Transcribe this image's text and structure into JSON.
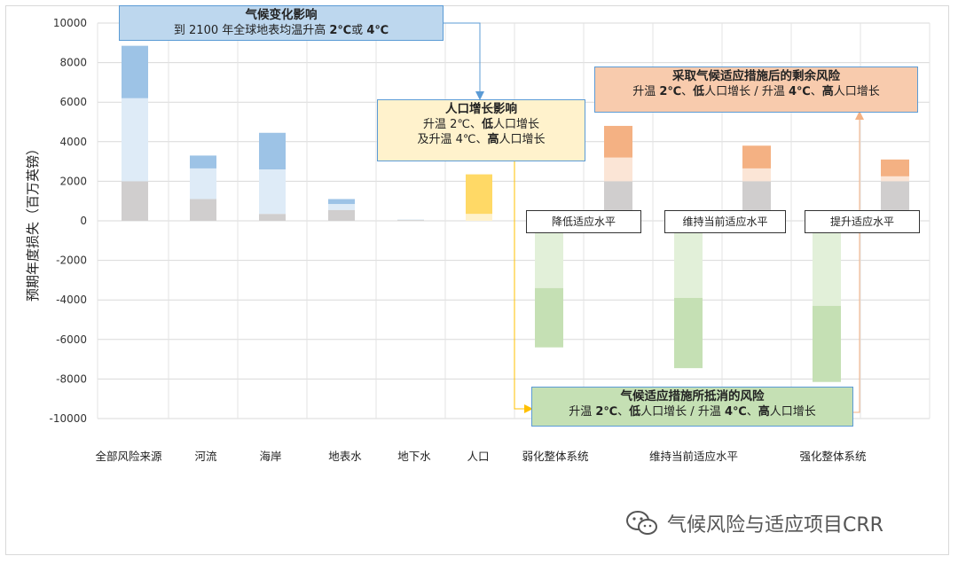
{
  "chart_data": {
    "type": "bar",
    "ylabel": "预期年度损失（百万英镑）",
    "ylim": [
      -10000,
      10000
    ],
    "yticks": [
      10000,
      8000,
      6000,
      4000,
      2000,
      0,
      -2000,
      -4000,
      -6000,
      -8000,
      -10000
    ],
    "grid": true,
    "categories": [
      "全部风险来源",
      "河流",
      "海岸",
      "地表水",
      "地下水",
      "人口",
      "弱化整体系统",
      "维持当前适应水平",
      "强化整体系统"
    ],
    "stacks": [
      {
        "category": "全部风险来源",
        "segments": [
          {
            "from": 0,
            "to": 2000,
            "color": "#d0cece"
          },
          {
            "from": 2000,
            "to": 6200,
            "color": "#deebf7"
          },
          {
            "from": 6200,
            "to": 8850,
            "color": "#9dc3e6"
          }
        ]
      },
      {
        "category": "河流",
        "segments": [
          {
            "from": 0,
            "to": 1100,
            "color": "#d0cece"
          },
          {
            "from": 1100,
            "to": 2650,
            "color": "#deebf7"
          },
          {
            "from": 2650,
            "to": 3300,
            "color": "#9dc3e6"
          }
        ]
      },
      {
        "category": "海岸",
        "segments": [
          {
            "from": 0,
            "to": 350,
            "color": "#d0cece"
          },
          {
            "from": 350,
            "to": 2600,
            "color": "#deebf7"
          },
          {
            "from": 2600,
            "to": 4450,
            "color": "#9dc3e6"
          }
        ]
      },
      {
        "category": "地表水",
        "segments": [
          {
            "from": 0,
            "to": 550,
            "color": "#d0cece"
          },
          {
            "from": 550,
            "to": 850,
            "color": "#deebf7"
          },
          {
            "from": 850,
            "to": 1100,
            "color": "#9dc3e6"
          }
        ]
      },
      {
        "category": "地下水",
        "segments": [
          {
            "from": 0,
            "to": 40,
            "color": "#d0cece"
          },
          {
            "from": 40,
            "to": 70,
            "color": "#deebf7"
          }
        ]
      },
      {
        "category": "人口",
        "segments": [
          {
            "from": 0,
            "to": 350,
            "color": "#fff2cc"
          },
          {
            "from": 350,
            "to": 2350,
            "color": "#ffd966"
          }
        ]
      },
      {
        "category": "弱化整体系统",
        "sub": "residual",
        "segments": [
          {
            "from": 0,
            "to": 2000,
            "color": "#d0cece"
          },
          {
            "from": 2000,
            "to": 3200,
            "color": "#fbe5d6"
          },
          {
            "from": 3200,
            "to": 4800,
            "color": "#f4b183"
          }
        ]
      },
      {
        "category": "弱化整体系统",
        "sub": "offset",
        "segments": [
          {
            "from": 0,
            "to": -3400,
            "color": "#e2f0d9"
          },
          {
            "from": -3400,
            "to": -6400,
            "color": "#c5e0b4"
          }
        ]
      },
      {
        "category": "维持当前适应水平",
        "sub": "residual",
        "segments": [
          {
            "from": 0,
            "to": 2000,
            "color": "#d0cece"
          },
          {
            "from": 2000,
            "to": 2650,
            "color": "#fbe5d6"
          },
          {
            "from": 2650,
            "to": 3800,
            "color": "#f4b183"
          }
        ]
      },
      {
        "category": "维持当前适应水平",
        "sub": "offset",
        "segments": [
          {
            "from": 0,
            "to": -3900,
            "color": "#e2f0d9"
          },
          {
            "from": -3900,
            "to": -7450,
            "color": "#c5e0b4"
          }
        ]
      },
      {
        "category": "强化整体系统",
        "sub": "residual",
        "segments": [
          {
            "from": 0,
            "to": 2000,
            "color": "#d0cece"
          },
          {
            "from": 2000,
            "to": 2250,
            "color": "#fbe5d6"
          },
          {
            "from": 2250,
            "to": 3100,
            "color": "#f4b183"
          }
        ]
      },
      {
        "category": "强化整体系统",
        "sub": "offset",
        "segments": [
          {
            "from": 0,
            "to": -4300,
            "color": "#e2f0d9"
          },
          {
            "from": -4300,
            "to": -8150,
            "color": "#c5e0b4"
          }
        ]
      }
    ]
  },
  "annotations": {
    "climate": {
      "title": "气候变化影响",
      "line_pre": "到 2100 年全球地表均温升高 ",
      "b1": "2℃",
      "mid": "或 ",
      "b2": "4℃"
    },
    "population": {
      "title": "人口增长影响",
      "l1_pre": "升温 2℃、",
      "l1_b": "低",
      "l1_post": "人口增长",
      "l2_pre": "及升温 4℃、",
      "l2_b": "高",
      "l2_post": "人口增长"
    },
    "residual": {
      "title": "采取气候适应措施后的剩余风险",
      "a": "升温 ",
      "b": "2℃",
      "c": "、",
      "d": "低",
      "e": "人口增长 / 升温 ",
      "f": "4℃",
      "g": "、",
      "h": "高",
      "i": "人口增长"
    },
    "offset": {
      "title": "气候适应措施所抵消的风险",
      "a": "升温 ",
      "b": "2℃",
      "c": "、",
      "d": "低",
      "e": "人口增长 / 升温 ",
      "f": "4℃",
      "g": "、",
      "h": "高",
      "i": "人口增长"
    }
  },
  "levels": {
    "low": "降低适应水平",
    "keep": "维持当前适应水平",
    "high": "提升适应水平"
  },
  "watermark": {
    "text": "气候风险与适应项目CRR"
  },
  "colors": {
    "arrow_blue": "#5b9bd5",
    "arrow_yellow": "#ffc000",
    "arrow_orange": "#f4b183"
  }
}
